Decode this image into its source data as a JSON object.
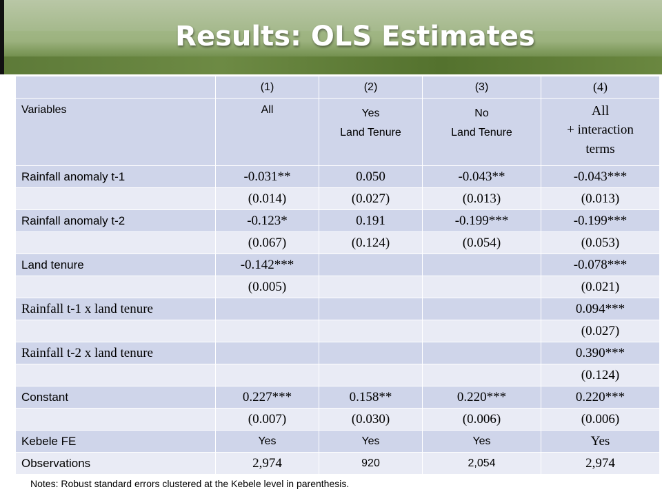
{
  "title": "Results: OLS Estimates",
  "header": {
    "col_numbers": [
      "(1)",
      "(2)",
      "(3)",
      "(4)"
    ],
    "variables_label": "Variables",
    "col1": "All",
    "col2_line1": "Yes",
    "col2_line2": "Land Tenure",
    "col3_line1": "No",
    "col3_line2": "Land Tenure",
    "col4_line1": "All",
    "col4_line2": "+ interaction",
    "col4_line3": "terms"
  },
  "rows": [
    {
      "label": "Rainfall anomaly t-1",
      "values": [
        "-0.031**",
        "0.050",
        "-0.043**",
        "-0.043***"
      ]
    },
    {
      "label": "",
      "values": [
        "(0.014)",
        "(0.027)",
        "(0.013)",
        "(0.013)"
      ]
    },
    {
      "label": "Rainfall anomaly t-2",
      "values": [
        "-0.123*",
        "0.191",
        "-0.199***",
        "-0.199***"
      ]
    },
    {
      "label": "",
      "values": [
        "(0.067)",
        "(0.124)",
        "(0.054)",
        "(0.053)"
      ]
    },
    {
      "label": "Land tenure",
      "values": [
        "-0.142***",
        "",
        "",
        "-0.078***"
      ]
    },
    {
      "label": "",
      "values": [
        "(0.005)",
        "",
        "",
        "(0.021)"
      ]
    },
    {
      "label": "Rainfall t-1 x land tenure",
      "values": [
        "",
        "",
        "",
        "0.094***"
      ]
    },
    {
      "label": "",
      "values": [
        "",
        "",
        "",
        "(0.027)"
      ]
    },
    {
      "label": "Rainfall t-2 x land tenure",
      "values": [
        "",
        "",
        "",
        "0.390***"
      ]
    },
    {
      "label": "",
      "values": [
        "",
        "",
        "",
        "(0.124)"
      ]
    },
    {
      "label": "Constant",
      "values": [
        "0.227***",
        "0.158**",
        "0.220***",
        "0.220***"
      ]
    },
    {
      "label": "",
      "values": [
        "(0.007)",
        "(0.030)",
        "(0.006)",
        "(0.006)"
      ]
    },
    {
      "label": "Kebele FE",
      "values": [
        "Yes",
        "Yes",
        "Yes",
        "Yes"
      ]
    },
    {
      "label": "Observations",
      "values": [
        "2,974",
        "920",
        "2,054",
        "2,974"
      ]
    }
  ],
  "notes": "Notes: Robust standard errors clustered at the Kebele level in parenthesis.",
  "colors": {
    "row_dark": "#cfd5ea",
    "row_light": "#e9ebf5",
    "title_text": "#ffffff"
  }
}
